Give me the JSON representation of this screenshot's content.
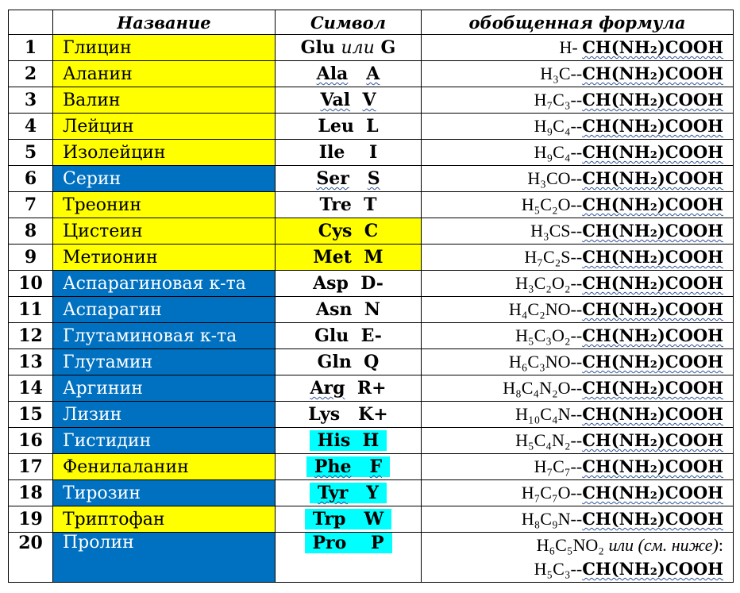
{
  "header": {
    "num": "",
    "name": "Название",
    "symbol": "Символ",
    "formula": "обобщенная формула"
  },
  "colors": {
    "yellow": "#ffff00",
    "blue": "#0070c0",
    "cyan": "#00ffff"
  },
  "rows": [
    {
      "num": "1",
      "name": "Глицин",
      "sym_a": "Glu",
      "sym_sep": "или",
      "sym_b": "G",
      "formula_prefix": "H- ",
      "formula_core": "CH(NH₂)COOH"
    },
    {
      "num": "2",
      "name": "Аланин",
      "sym_a": "Ala",
      "sym_b": "A",
      "formula_prefix": "H₃C--",
      "formula_core": "CH(NH₂)COOH"
    },
    {
      "num": "3",
      "name": "Валин",
      "sym_a": "Val",
      "sym_b": "V",
      "formula_prefix": "H₇C₃--",
      "formula_core": "CH(NH₂)COOH"
    },
    {
      "num": "4",
      "name": "Лейцин",
      "sym_a": "Leu",
      "sym_b": "L",
      "formula_prefix": "H₉C₄--",
      "formula_core": "CH(NH₂)COOH"
    },
    {
      "num": "5",
      "name": "Изолейцин",
      "sym_a": "Ile",
      "sym_b": "I",
      "formula_prefix": "H₉C₄--",
      "formula_core": "CH(NH₂)COOH"
    },
    {
      "num": "6",
      "name": "Серин",
      "sym_a": "Ser",
      "sym_b": "S",
      "formula_prefix": "H₃CO--",
      "formula_core": "CH(NH₂)COOH"
    },
    {
      "num": "7",
      "name": "Треонин",
      "sym_a": "Tre",
      "sym_b": "T",
      "formula_prefix": "H₅C₂O--",
      "formula_core": "CH(NH₂)COOH"
    },
    {
      "num": "8",
      "name": "Цистеин",
      "sym_a": "Cys",
      "sym_b": "C",
      "formula_prefix": "H₃CS--",
      "formula_core": "CH(NH₂)COOH"
    },
    {
      "num": "9",
      "name": "Метионин",
      "sym_a": "Met",
      "sym_b": "M",
      "formula_prefix": "H₇C₂S--",
      "formula_core": "CH(NH₂)COOH"
    },
    {
      "num": "10",
      "name": "Аспарагиновая к-та",
      "sym_a": "Asp",
      "sym_b": "D-",
      "formula_prefix": "H₃C₂O₂--",
      "formula_core": "CH(NH₂)COOH"
    },
    {
      "num": "11",
      "name": "Аспарагин",
      "sym_a": "Asn",
      "sym_b": "N",
      "formula_prefix": "H₄C₂NO--",
      "formula_core": "CH(NH₂)COOH"
    },
    {
      "num": "12",
      "name": "Глутаминовая к-та",
      "sym_a": "Glu",
      "sym_b": "E-",
      "formula_prefix": "H₅C₃O₂--",
      "formula_core": "CH(NH₂)COOH"
    },
    {
      "num": "13",
      "name": "Глутамин",
      "sym_a": "Gln",
      "sym_b": "Q",
      "formula_prefix": "H₆C₃NO--",
      "formula_core": "CH(NH₂)COOH"
    },
    {
      "num": "14",
      "name": "Аргинин",
      "sym_a": "Arg",
      "sym_b": "R+",
      "formula_prefix": "H₈C₄N₂O--",
      "formula_core": "CH(NH₂)COOH"
    },
    {
      "num": "15",
      "name": "Лизин",
      "sym_a": "Lys",
      "sym_b": "K+",
      "formula_prefix": "H₁₀C₄N--",
      "formula_core": "CH(NH₂)COOH"
    },
    {
      "num": "16",
      "name": "Гистидин",
      "sym_a": "His",
      "sym_b": "H",
      "formula_prefix": "H₅C₄N₂--",
      "formula_core": "CH(NH₂)COOH"
    },
    {
      "num": "17",
      "name": "Фенилаланин",
      "sym_a": "Phe",
      "sym_b": "F",
      "formula_prefix": "H₇C₇--",
      "formula_core": "CH(NH₂)COOH"
    },
    {
      "num": "18",
      "name": "Тирозин",
      "sym_a": "Tyr",
      "sym_b": "Y",
      "formula_prefix": "H₇C₇O--",
      "formula_core": "CH(NH₂)COOH"
    },
    {
      "num": "19",
      "name": "Триптофан",
      "sym_a": "Trp",
      "sym_b": "W",
      "formula_prefix": "H₈C₉N--",
      "formula_core": "CH(NH₂)COOH"
    }
  ],
  "row20": {
    "num": "20",
    "name": "Пролин",
    "sym_a": "Pro",
    "sym_b": "P",
    "line1_a": "H₆C₅NO₂ ",
    "line1_it": "или (см. ниже)",
    "line1_end": ":",
    "line2_prefix": "H₅C₃--",
    "line2_core": "CH(NH₂)COOH"
  }
}
